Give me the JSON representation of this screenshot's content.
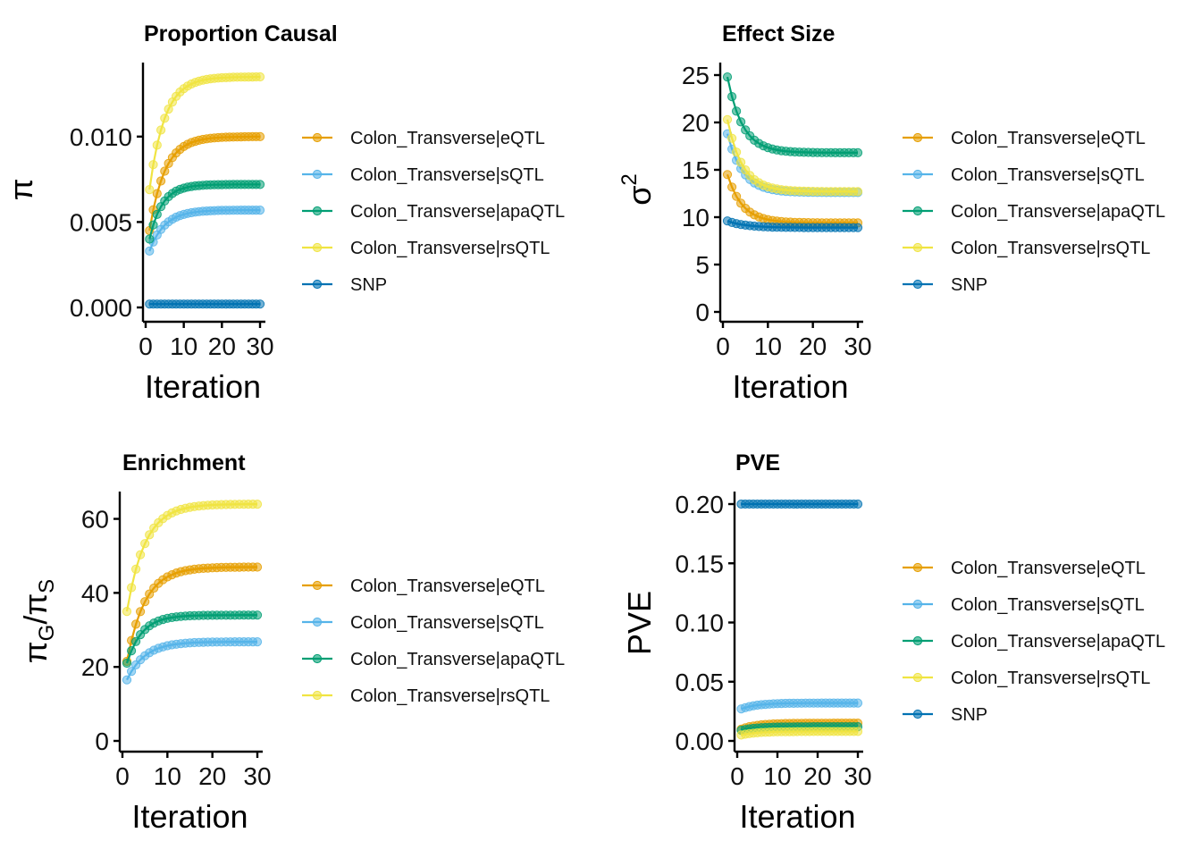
{
  "colors": {
    "Colon_Transverse|eQTL": "#E69F00",
    "Colon_Transverse|sQTL": "#56B4E9",
    "Colon_Transverse|apaQTL": "#009E73",
    "Colon_Transverse|rsQTL": "#F0E442",
    "SNP": "#0072B2"
  },
  "chart_data": [
    {
      "type": "line",
      "title": "Proportion Causal",
      "xlabel": "Iteration",
      "ylabel": "π",
      "xlim": [
        0,
        30
      ],
      "ylim": [
        0,
        0.0136
      ],
      "xticks": [
        0,
        10,
        20,
        30
      ],
      "xtick_labels": [
        "0",
        "10",
        "20",
        "30"
      ],
      "yticks": [
        0,
        0.005,
        0.01
      ],
      "ytick_labels": [
        "0.000",
        "0.005",
        "0.010"
      ],
      "grid": false,
      "legend": "right",
      "x": [
        1,
        30
      ],
      "series": [
        {
          "name": "Colon_Transverse|eQTL",
          "start": 0.0045,
          "end": 0.01,
          "rate": 0.25
        },
        {
          "name": "Colon_Transverse|sQTL",
          "start": 0.0033,
          "end": 0.0057,
          "rate": 0.25
        },
        {
          "name": "Colon_Transverse|apaQTL",
          "start": 0.004,
          "end": 0.0072,
          "rate": 0.3
        },
        {
          "name": "Colon_Transverse|rsQTL",
          "start": 0.0069,
          "end": 0.0135,
          "rate": 0.25
        },
        {
          "name": "SNP",
          "start": 0.0002,
          "end": 0.0002,
          "rate": 0.3
        }
      ]
    },
    {
      "type": "line",
      "title": "Effect Size",
      "xlabel": "Iteration",
      "ylabel": "σ",
      "ylabel_sup": "2",
      "xlim": [
        0,
        30
      ],
      "ylim": [
        0,
        25
      ],
      "xticks": [
        0,
        10,
        20,
        30
      ],
      "xtick_labels": [
        "0",
        "10",
        "20",
        "30"
      ],
      "yticks": [
        0,
        5,
        10,
        15,
        20,
        25
      ],
      "ytick_labels": [
        "0",
        "5",
        "10",
        "15",
        "20",
        "25"
      ],
      "grid": false,
      "legend": "right",
      "x": [
        1,
        30
      ],
      "series": [
        {
          "name": "Colon_Transverse|eQTL",
          "start": 14.5,
          "end": 9.4,
          "rate": 0.3
        },
        {
          "name": "Colon_Transverse|sQTL",
          "start": 18.8,
          "end": 12.6,
          "rate": 0.3
        },
        {
          "name": "Colon_Transverse|apaQTL",
          "start": 24.8,
          "end": 16.8,
          "rate": 0.3
        },
        {
          "name": "Colon_Transverse|rsQTL",
          "start": 20.3,
          "end": 12.7,
          "rate": 0.3
        },
        {
          "name": "SNP",
          "start": 9.6,
          "end": 8.9,
          "rate": 0.25
        }
      ]
    },
    {
      "type": "line",
      "title": "Enrichment",
      "xlabel": "Iteration",
      "ylabel": "π",
      "ylabel_sub1": "G",
      "ylabel_mid": "/π",
      "ylabel_sub2": "S",
      "xlim": [
        0,
        30
      ],
      "ylim": [
        0,
        64
      ],
      "xticks": [
        0,
        10,
        20,
        30
      ],
      "xtick_labels": [
        "0",
        "10",
        "20",
        "30"
      ],
      "yticks": [
        0,
        20,
        40,
        60
      ],
      "ytick_labels": [
        "0",
        "20",
        "40",
        "60"
      ],
      "grid": false,
      "legend": "right",
      "x": [
        1,
        30
      ],
      "series": [
        {
          "name": "Colon_Transverse|eQTL",
          "start": 21.5,
          "end": 47.0,
          "rate": 0.25
        },
        {
          "name": "Colon_Transverse|sQTL",
          "start": 16.5,
          "end": 26.8,
          "rate": 0.25
        },
        {
          "name": "Colon_Transverse|apaQTL",
          "start": 21.0,
          "end": 34.0,
          "rate": 0.3
        },
        {
          "name": "Colon_Transverse|rsQTL",
          "start": 35.0,
          "end": 64.0,
          "rate": 0.25
        }
      ]
    },
    {
      "type": "line",
      "title": "PVE",
      "xlabel": "Iteration",
      "ylabel": "PVE",
      "xlim": [
        0,
        30
      ],
      "ylim": [
        0,
        0.2
      ],
      "xticks": [
        0,
        10,
        20,
        30
      ],
      "xtick_labels": [
        "0",
        "10",
        "20",
        "30"
      ],
      "yticks": [
        0,
        0.05,
        0.1,
        0.15,
        0.2
      ],
      "ytick_labels": [
        "0.00",
        "0.05",
        "0.10",
        "0.15",
        "0.20"
      ],
      "grid": false,
      "legend": "right",
      "x": [
        1,
        30
      ],
      "series": [
        {
          "name": "Colon_Transverse|eQTL",
          "start": 0.01,
          "end": 0.015,
          "rate": 0.25
        },
        {
          "name": "Colon_Transverse|sQTL",
          "start": 0.027,
          "end": 0.032,
          "rate": 0.25
        },
        {
          "name": "Colon_Transverse|apaQTL",
          "start": 0.009,
          "end": 0.012,
          "rate": 0.25
        },
        {
          "name": "Colon_Transverse|rsQTL",
          "start": 0.005,
          "end": 0.008,
          "rate": 0.25
        },
        {
          "name": "SNP",
          "start": 0.2,
          "end": 0.2,
          "rate": 0.25
        }
      ]
    }
  ]
}
